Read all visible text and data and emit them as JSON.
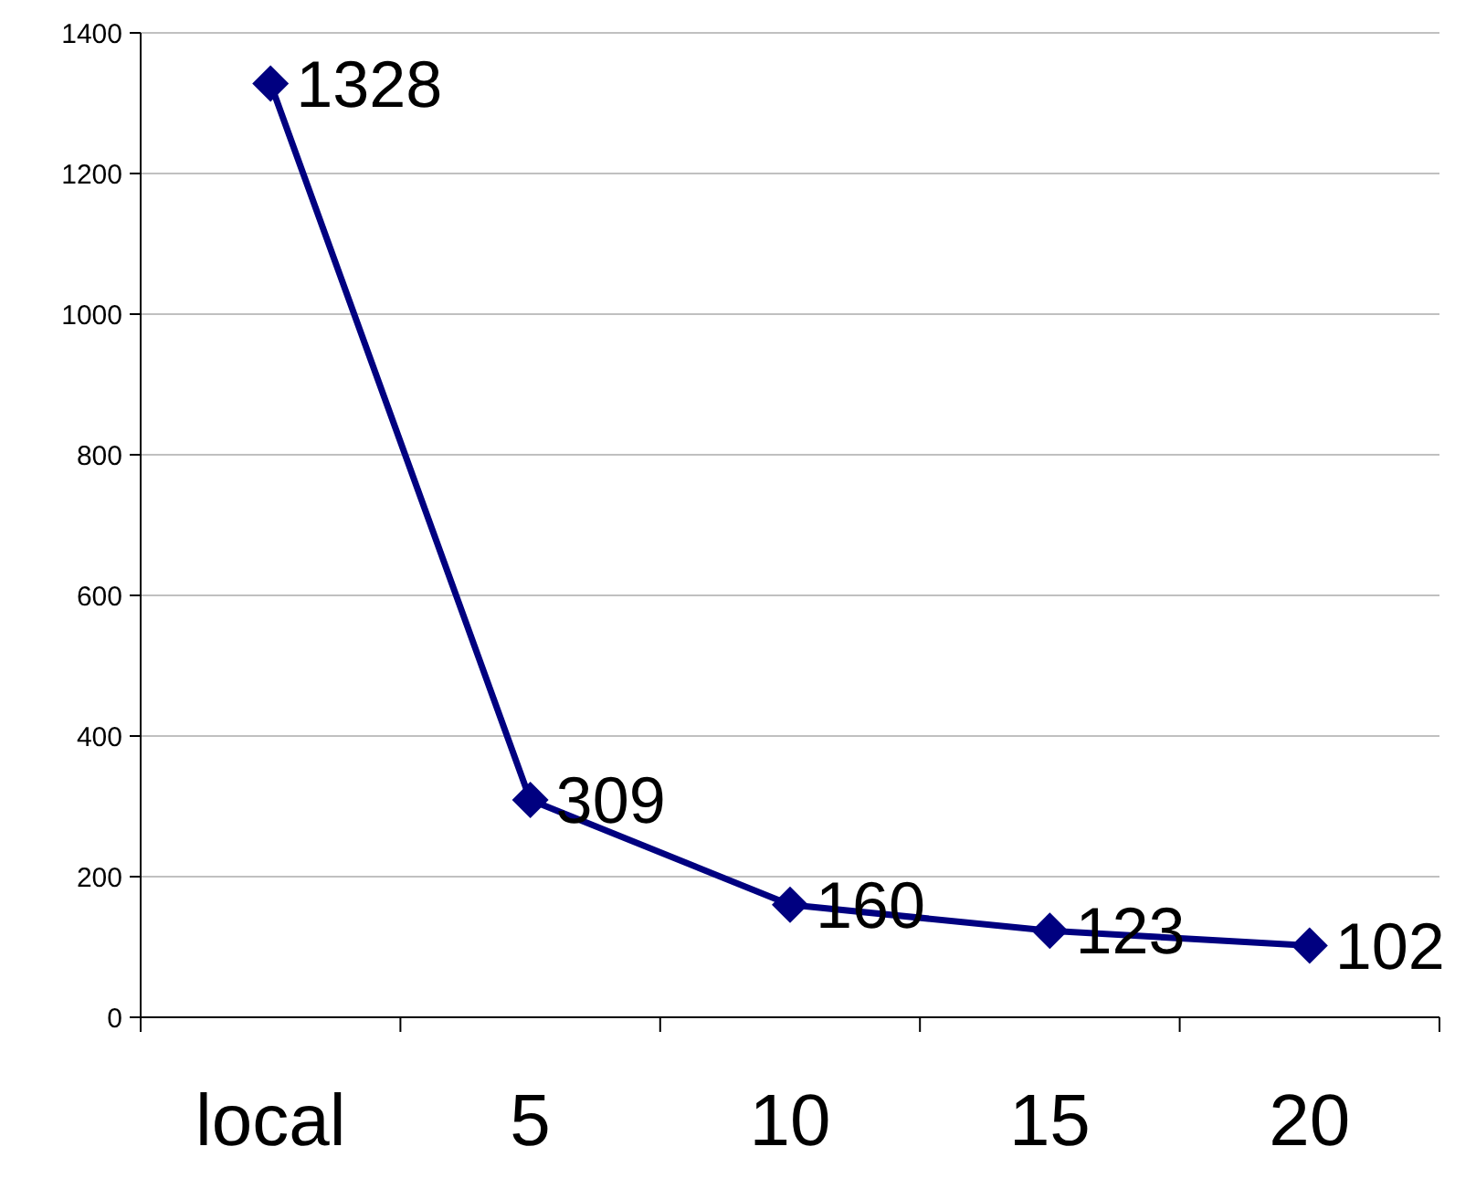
{
  "chart_data": {
    "type": "line",
    "categories": [
      "local",
      "5",
      "10",
      "15",
      "20"
    ],
    "series": [
      {
        "color": "#000080",
        "values": [
          1328,
          309,
          160,
          123,
          102
        ]
      }
    ],
    "ylim": [
      0,
      1400
    ],
    "yticks": [
      0,
      200,
      400,
      600,
      800,
      1000,
      1200,
      1400
    ],
    "grid": "y",
    "marker": "diamond",
    "line_style": "solid",
    "data_labels": true
  }
}
